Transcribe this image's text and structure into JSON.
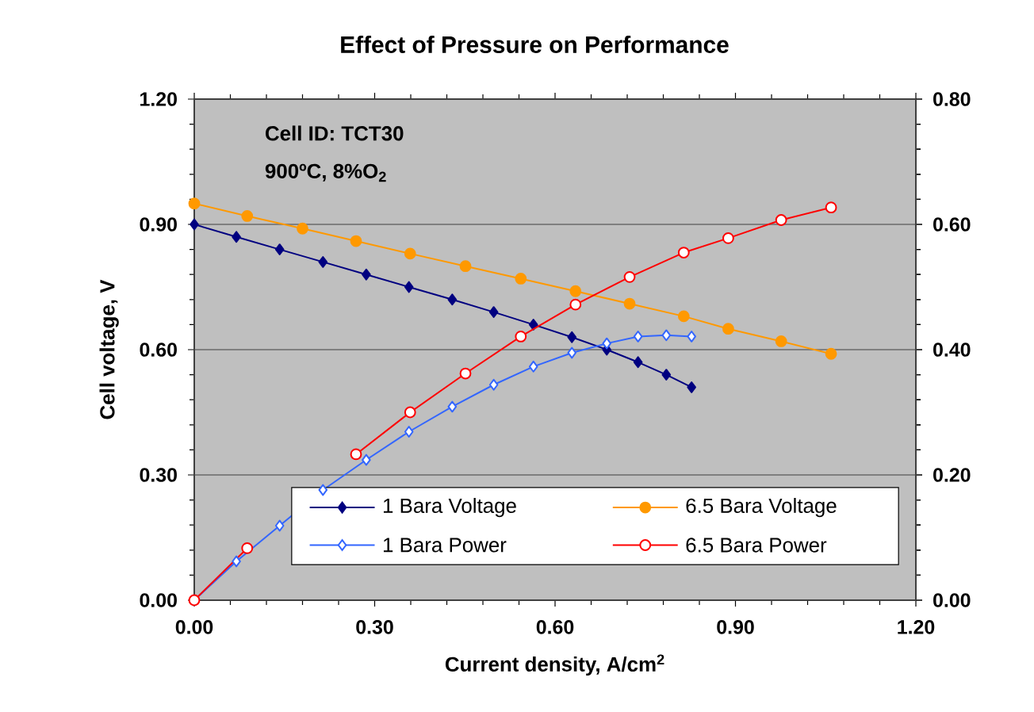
{
  "chart_data": {
    "type": "line",
    "title": "Effect of Pressure on Performance",
    "xlabel": "Current density, A/cm$^{2}$",
    "ylabel": "Cell voltage, V",
    "annotations": [
      "Cell ID: TCT30",
      "900ºC,  8%O$_{2}$"
    ],
    "series": [
      {
        "name": "1 Bara Voltage",
        "color": "#000080",
        "marker": "diamond",
        "x": [
          0,
          0.07,
          0.142,
          0.214,
          0.286,
          0.357,
          0.429,
          0.498,
          0.564,
          0.628,
          0.686,
          0.738,
          0.785,
          0.827
        ],
        "values": [
          0.9,
          0.87,
          0.84,
          0.81,
          0.78,
          0.75,
          0.72,
          0.69,
          0.66,
          0.63,
          0.6,
          0.57,
          0.54,
          0.51
        ]
      },
      {
        "name": "6.5 Bara Voltage",
        "color": "#ff9900",
        "marker": "circle",
        "x": [
          0,
          0.088,
          0.18,
          0.269,
          0.359,
          0.451,
          0.543,
          0.634,
          0.724,
          0.814,
          0.888,
          0.976,
          1.059
        ],
        "values": [
          0.95,
          0.92,
          0.89,
          0.86,
          0.83,
          0.8,
          0.77,
          0.74,
          0.71,
          0.68,
          0.65,
          0.62,
          0.59
        ]
      },
      {
        "name": "1 Bara Power",
        "color": "#3366ff",
        "marker": "diamond",
        "axis": "y2",
        "x": [
          0,
          0.07,
          0.142,
          0.214,
          0.286,
          0.357,
          0.429,
          0.498,
          0.564,
          0.628,
          0.686,
          0.738,
          0.785,
          0.827
        ],
        "values": [
          0,
          0.062,
          0.119,
          0.176,
          0.224,
          0.269,
          0.309,
          0.344,
          0.373,
          0.395,
          0.41,
          0.421,
          0.423,
          0.421
        ]
      },
      {
        "name": "6.5 Bara Power",
        "color": "#ff0000",
        "marker": "circle",
        "axis": "y2",
        "x": [
          0,
          0.088,
          0.18,
          0.269,
          0.359,
          0.451,
          0.543,
          0.634,
          0.724,
          0.814,
          0.888,
          0.976,
          1.059
        ],
        "values": [
          0,
          0.083,
          null,
          0.233,
          0.3,
          0.362,
          0.421,
          0.472,
          0.516,
          0.555,
          0.578,
          0.607,
          0.627
        ]
      }
    ],
    "xlim": [
      0,
      1.2
    ],
    "xticks": [
      {
        "value": 0,
        "label": "0.00"
      },
      {
        "value": 0.3,
        "label": "0.30"
      },
      {
        "value": 0.6,
        "label": "0.60"
      },
      {
        "value": 0.9,
        "label": "0.90"
      },
      {
        "value": 1.2,
        "label": "1.20"
      }
    ],
    "ylim": [
      0,
      1.2
    ],
    "yticks": [
      {
        "value": 0,
        "label": "0.00"
      },
      {
        "value": 0.3,
        "label": "0.30"
      },
      {
        "value": 0.6,
        "label": "0.60"
      },
      {
        "value": 0.9,
        "label": "0.90"
      },
      {
        "value": 1.2,
        "label": "1.20"
      }
    ],
    "y2lim": [
      0,
      0.8
    ],
    "y2ticks": [
      {
        "value": 0,
        "label": "0.00"
      },
      {
        "value": 0.2,
        "label": "0.20"
      },
      {
        "value": 0.4,
        "label": "0.40"
      },
      {
        "value": 0.6,
        "label": "0.60"
      },
      {
        "value": 0.8,
        "label": "0.80"
      }
    ],
    "grid": "y",
    "legend": "bottom right"
  }
}
